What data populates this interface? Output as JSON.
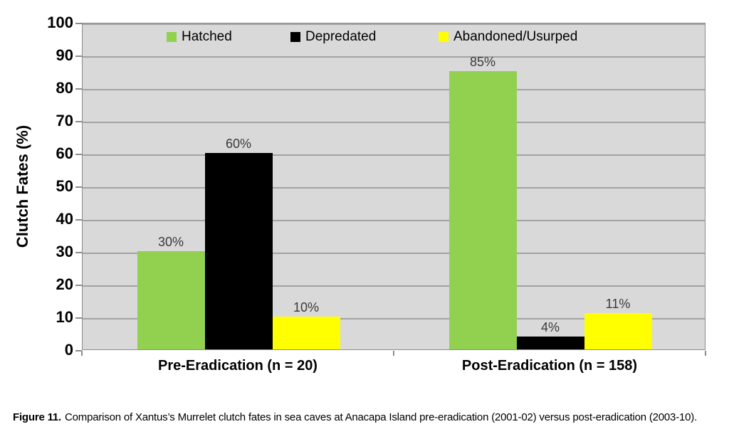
{
  "chart_data": {
    "type": "bar",
    "title": "",
    "xlabel": "",
    "ylabel": "Clutch Fates (%)",
    "categories": [
      "Pre-Eradication (n = 20)",
      "Post-Eradication (n = 158)"
    ],
    "series": [
      {
        "name": "Hatched",
        "color": "#92D050",
        "values": [
          30,
          85
        ]
      },
      {
        "name": "Depredated",
        "color": "#000000",
        "values": [
          60,
          4
        ]
      },
      {
        "name": "Abandoned/Usurped",
        "color": "#FFFF00",
        "values": [
          10,
          11
        ]
      }
    ],
    "data_labels": [
      [
        "30%",
        "60%",
        "10%"
      ],
      [
        "85%",
        "4%",
        "11%"
      ]
    ],
    "ylim": [
      0,
      100
    ],
    "ytick_step": 10,
    "ytick_labels": [
      "0",
      "10",
      "20",
      "30",
      "40",
      "50",
      "60",
      "70",
      "80",
      "90",
      "100"
    ],
    "grid": true,
    "legend_position": "top-inside",
    "plot_bg_color": "#D9D9D9",
    "gridline_color": "#A3A3A3",
    "axis_color": "#8C8C8C"
  },
  "legend": {
    "items": [
      {
        "label": "Hatched"
      },
      {
        "label": "Depredated"
      },
      {
        "label": "Abandoned/Usurped"
      }
    ]
  },
  "caption": {
    "prefix": "Figure 11.",
    "text": "Comparison of Xantus’s Murrelet clutch fates in sea caves at Anacapa Island pre-eradication (2001-02) versus post-eradication (2003-10)."
  }
}
